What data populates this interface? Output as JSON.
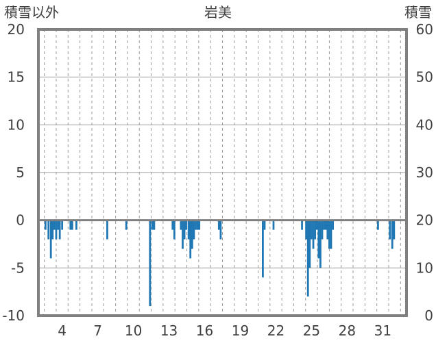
{
  "chart_data": {
    "type": "bar",
    "title": "岩美",
    "left_axis_title": "積雪以外",
    "right_axis_title": "積雪",
    "ylim": [
      -10,
      20
    ],
    "y2lim": [
      0,
      60
    ],
    "yticks": [
      20,
      15,
      10,
      5,
      0,
      -5,
      -10
    ],
    "y2ticks": [
      60,
      50,
      40,
      30,
      20,
      10,
      0
    ],
    "xlim": [
      2,
      33
    ],
    "xticks": [
      4,
      7,
      10,
      13,
      16,
      19,
      22,
      25,
      28,
      31
    ],
    "xtick_labels": [
      "4",
      "7",
      "10",
      "13",
      "16",
      "19",
      "22",
      "25",
      "28",
      "31"
    ],
    "grid": "vertical-dashed-and-horizontal",
    "bar_color": "#1f77b4",
    "series": [
      {
        "x": [
          2.6,
          2.85,
          3.05,
          3.2,
          3.35,
          3.5,
          3.65,
          3.8,
          4.0,
          4.7,
          4.85,
          5.2,
          7.8,
          9.4,
          11.4,
          11.6,
          11.75,
          13.3,
          13.45,
          14.0,
          14.15,
          14.3,
          14.45,
          14.65,
          14.8,
          14.95,
          15.1,
          15.25,
          15.4,
          15.55,
          17.2,
          17.35,
          20.9,
          21.05,
          21.8,
          24.2,
          24.55,
          24.7,
          24.85,
          25.0,
          25.15,
          25.3,
          25.45,
          25.6,
          25.75,
          25.9,
          26.05,
          26.2,
          26.35,
          26.5,
          26.65,
          26.8,
          30.6,
          31.6,
          31.8,
          31.95
        ],
        "values": [
          -1,
          -2,
          -4,
          -2,
          -1,
          -2,
          -1,
          -2,
          -1,
          -1,
          -1,
          -1,
          -2,
          -1,
          -9,
          -1,
          -1,
          -1,
          -2,
          -1,
          -3,
          -2,
          -1,
          -2,
          -4,
          -3,
          -2,
          -1,
          -1,
          -1,
          -1,
          -2,
          -6,
          -1,
          -1,
          -1,
          -2,
          -8,
          -5,
          -2,
          -3,
          -2,
          -1,
          -4,
          -5,
          -2,
          -1,
          -1,
          -2,
          -3,
          -3,
          -1,
          -1,
          -2,
          -3,
          -2
        ]
      }
    ]
  }
}
